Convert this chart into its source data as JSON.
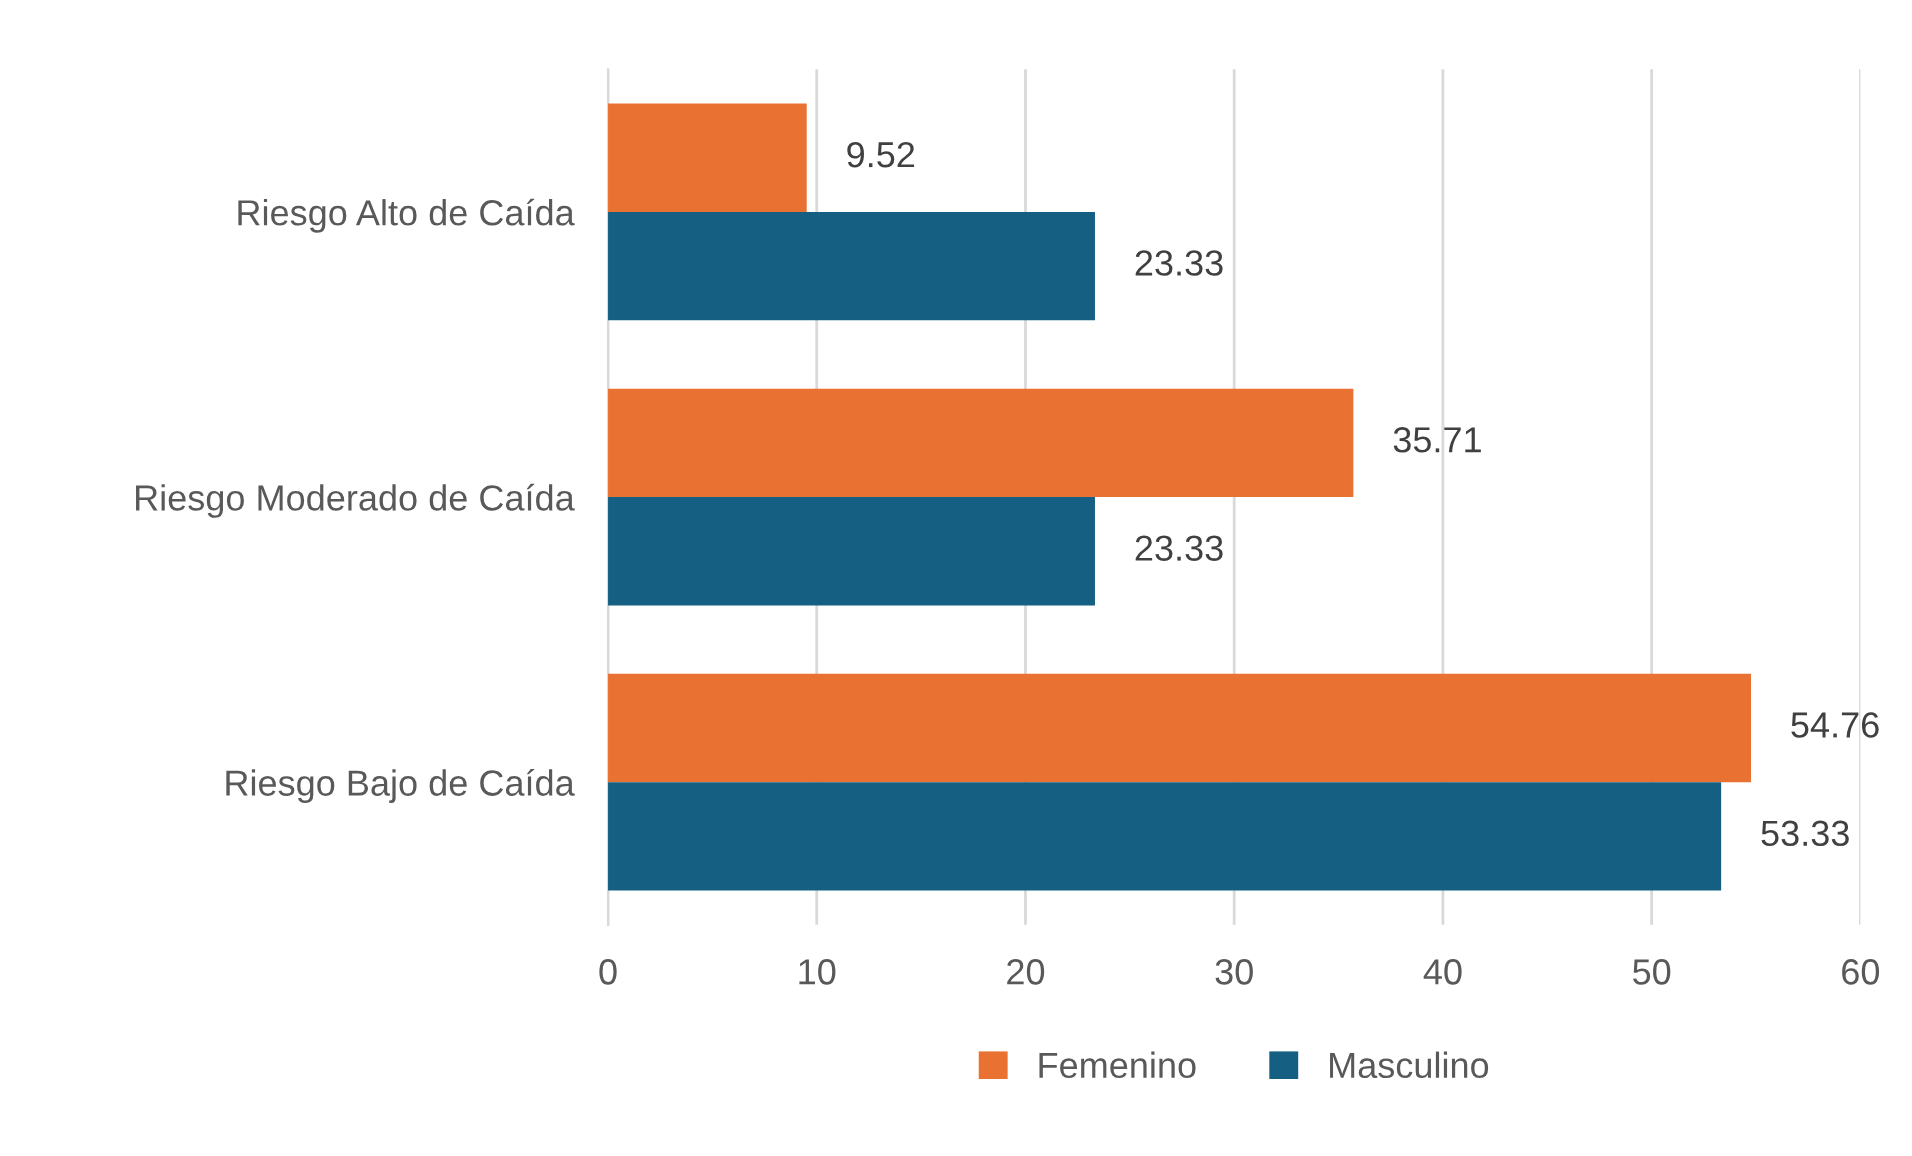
{
  "chart_data": {
    "type": "bar",
    "orientation": "horizontal",
    "categories": [
      "Riesgo Alto de Caída",
      "Riesgo Moderado de Caída",
      "Riesgo Bajo de Caída"
    ],
    "series": [
      {
        "name": "Femenino",
        "color": "#e97132",
        "values": [
          9.52,
          35.71,
          54.76
        ]
      },
      {
        "name": "Masculino",
        "color": "#156082",
        "values": [
          23.33,
          23.33,
          53.33
        ]
      }
    ],
    "xlim": [
      0,
      60
    ],
    "xticks": [
      0,
      10,
      20,
      30,
      40,
      50,
      60
    ],
    "grid": "x",
    "legend": "bottom",
    "data_labels": true
  }
}
